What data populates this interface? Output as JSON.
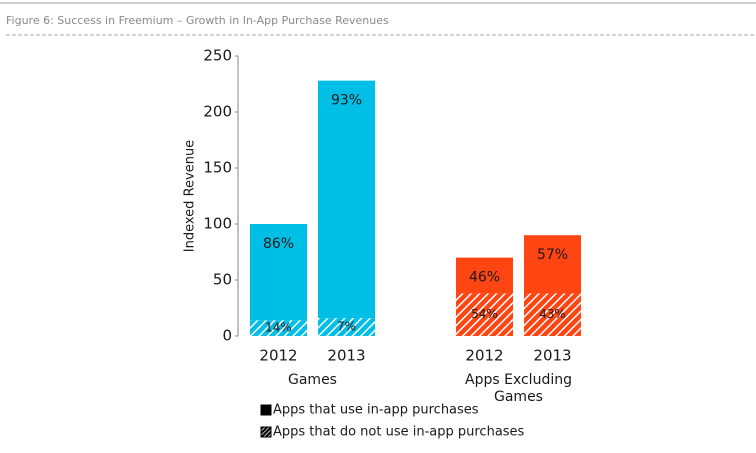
{
  "chart_data": {
    "type": "bar",
    "stacked": true,
    "title": "Figure 6: Success in Freemium – Growth in In-App Purchase Revenues",
    "y_label": "Indexed Revenue",
    "ylim": [
      0,
      250
    ],
    "yticks": [
      0,
      50,
      100,
      150,
      200,
      250
    ],
    "legend": [
      {
        "name": "Apps that use in-app purchases",
        "pattern": "solid"
      },
      {
        "name": "Apps that do not use in-app purchases",
        "pattern": "hatched"
      }
    ],
    "groups": [
      {
        "name": "Games",
        "color": "#00bfe6",
        "categories": [
          "2012",
          "2013"
        ],
        "stacks": [
          {
            "pattern": "hatched",
            "values": [
              14,
              16
            ],
            "labels": [
              "14%",
              "7%"
            ]
          },
          {
            "pattern": "solid",
            "values": [
              86,
              212
            ],
            "labels": [
              "86%",
              "93%"
            ]
          }
        ]
      },
      {
        "name": "Apps Excluding Games",
        "color": "#ff4512",
        "categories": [
          "2012",
          "2013"
        ],
        "stacks": [
          {
            "pattern": "hatched",
            "values": [
              38,
              38
            ],
            "labels": [
              "54%",
              "43%"
            ]
          },
          {
            "pattern": "solid",
            "values": [
              32,
              52
            ],
            "labels": [
              "46%",
              "57%"
            ]
          }
        ]
      }
    ]
  }
}
